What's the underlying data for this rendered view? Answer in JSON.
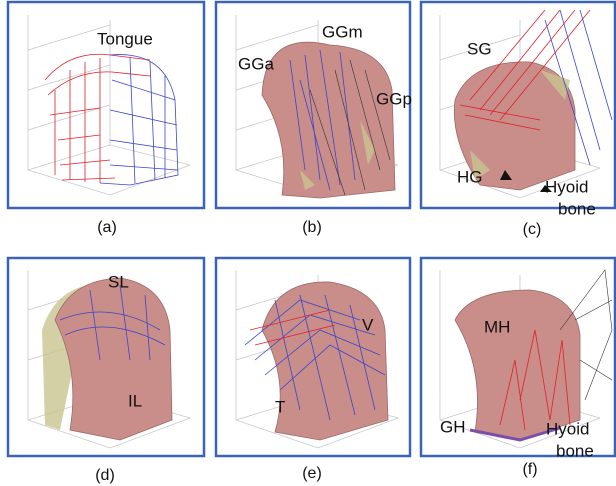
{
  "panels": [
    {
      "caption": "(a)",
      "labels": [
        "Tongue"
      ]
    },
    {
      "caption": "(b)",
      "labels": [
        "GGm",
        "GGa",
        "GGp"
      ]
    },
    {
      "caption": "(c)",
      "labels": [
        "SG",
        "HG",
        "Hyoid",
        "bone"
      ]
    },
    {
      "caption": "(d)",
      "labels": [
        "SL",
        "IL"
      ]
    },
    {
      "caption": "(e)",
      "labels": [
        "V",
        "T"
      ]
    },
    {
      "caption": "(f)",
      "labels": [
        "MH",
        "GH",
        "Hyoid",
        "bone"
      ]
    }
  ]
}
